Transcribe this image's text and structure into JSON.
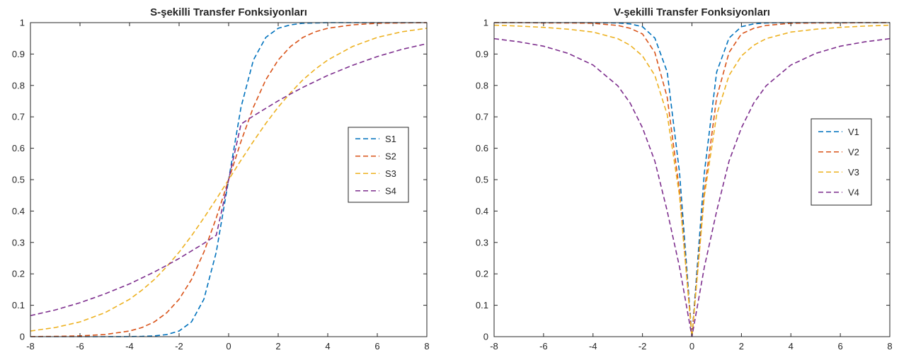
{
  "chart_data": [
    {
      "type": "line",
      "title": "S-şekilli Transfer Fonksiyonları",
      "xlabel": "",
      "ylabel": "",
      "xlim": [
        -8,
        8
      ],
      "ylim": [
        0,
        1
      ],
      "xticks": [
        -8,
        -6,
        -4,
        -2,
        0,
        2,
        4,
        6,
        8
      ],
      "yticks": [
        0,
        0.1,
        0.2,
        0.3,
        0.4,
        0.5,
        0.6,
        0.7,
        0.8,
        0.9,
        1
      ],
      "grid": false,
      "legend_position": "right",
      "line_style": "dashed",
      "x": [
        -8,
        -7,
        -6,
        -5,
        -4,
        -3.5,
        -3,
        -2.5,
        -2,
        -1.5,
        -1,
        -0.5,
        0,
        0.5,
        1,
        1.5,
        2,
        2.5,
        3,
        3.5,
        4,
        5,
        6,
        7,
        8
      ],
      "series": [
        {
          "name": "S1",
          "color": "#0072BD",
          "values": [
            0.0,
            0.0,
            0.0,
            0.0,
            0.0003,
            0.0009,
            0.0025,
            0.0067,
            0.018,
            0.047,
            0.119,
            0.269,
            0.5,
            0.731,
            0.881,
            0.953,
            0.982,
            0.993,
            0.998,
            0.999,
            1.0,
            1.0,
            1.0,
            1.0,
            1.0
          ]
        },
        {
          "name": "S2",
          "color": "#D95319",
          "values": [
            0.0003,
            0.0009,
            0.0025,
            0.0067,
            0.018,
            0.029,
            0.047,
            0.076,
            0.119,
            0.182,
            0.269,
            0.378,
            0.5,
            0.622,
            0.731,
            0.818,
            0.881,
            0.924,
            0.953,
            0.971,
            0.982,
            0.993,
            0.998,
            0.999,
            1.0
          ]
        },
        {
          "name": "S3",
          "color": "#EDB120",
          "values": [
            0.018,
            0.029,
            0.047,
            0.076,
            0.119,
            0.148,
            0.182,
            0.223,
            0.269,
            0.321,
            0.378,
            0.438,
            0.5,
            0.562,
            0.622,
            0.679,
            0.731,
            0.777,
            0.818,
            0.852,
            0.881,
            0.924,
            0.953,
            0.971,
            0.982
          ]
        },
        {
          "name": "S4",
          "color": "#7E2F8E",
          "values": [
            0.067,
            0.085,
            0.108,
            0.136,
            0.168,
            0.187,
            0.206,
            0.227,
            0.249,
            0.273,
            0.297,
            0.323,
            0.5,
            0.677,
            0.703,
            0.727,
            0.751,
            0.773,
            0.794,
            0.813,
            0.832,
            0.864,
            0.892,
            0.915,
            0.933
          ]
        }
      ]
    },
    {
      "type": "line",
      "title": "V-şekilli Transfer Fonksiyonları",
      "xlabel": "",
      "ylabel": "",
      "xlim": [
        -8,
        8
      ],
      "ylim": [
        0,
        1
      ],
      "xticks": [
        -8,
        -6,
        -4,
        -2,
        0,
        2,
        4,
        6,
        8
      ],
      "yticks": [
        0,
        0.1,
        0.2,
        0.3,
        0.4,
        0.5,
        0.6,
        0.7,
        0.8,
        0.9,
        1
      ],
      "grid": false,
      "legend_position": "right",
      "line_style": "dashed",
      "x": [
        -8,
        -7,
        -6,
        -5,
        -4,
        -3,
        -2.5,
        -2,
        -1.5,
        -1,
        -0.5,
        0,
        0.5,
        1,
        1.5,
        2,
        2.5,
        3,
        4,
        5,
        6,
        7,
        8
      ],
      "series": [
        {
          "name": "V1",
          "color": "#0072BD",
          "values": [
            1.0,
            1.0,
            1.0,
            1.0,
            1.0,
            0.999,
            0.996,
            0.987,
            0.951,
            0.843,
            0.521,
            0.0,
            0.521,
            0.843,
            0.951,
            0.987,
            0.996,
            0.999,
            1.0,
            1.0,
            1.0,
            1.0,
            1.0
          ]
        },
        {
          "name": "V2",
          "color": "#D95319",
          "values": [
            1.0,
            1.0,
            0.999,
            0.999,
            0.998,
            0.991,
            0.982,
            0.964,
            0.905,
            0.762,
            0.462,
            0.0,
            0.462,
            0.762,
            0.905,
            0.964,
            0.982,
            0.991,
            0.998,
            0.999,
            0.999,
            1.0,
            1.0
          ]
        },
        {
          "name": "V3",
          "color": "#EDB120",
          "values": [
            0.992,
            0.989,
            0.985,
            0.979,
            0.97,
            0.949,
            0.928,
            0.894,
            0.832,
            0.707,
            0.447,
            0.0,
            0.447,
            0.707,
            0.832,
            0.894,
            0.928,
            0.949,
            0.97,
            0.979,
            0.985,
            0.989,
            0.992
          ]
        },
        {
          "name": "V4",
          "color": "#7E2F8E",
          "values": [
            0.949,
            0.939,
            0.925,
            0.902,
            0.865,
            0.799,
            0.744,
            0.665,
            0.559,
            0.4,
            0.221,
            0.0,
            0.221,
            0.4,
            0.559,
            0.665,
            0.744,
            0.799,
            0.865,
            0.902,
            0.925,
            0.939,
            0.949
          ]
        }
      ]
    }
  ]
}
